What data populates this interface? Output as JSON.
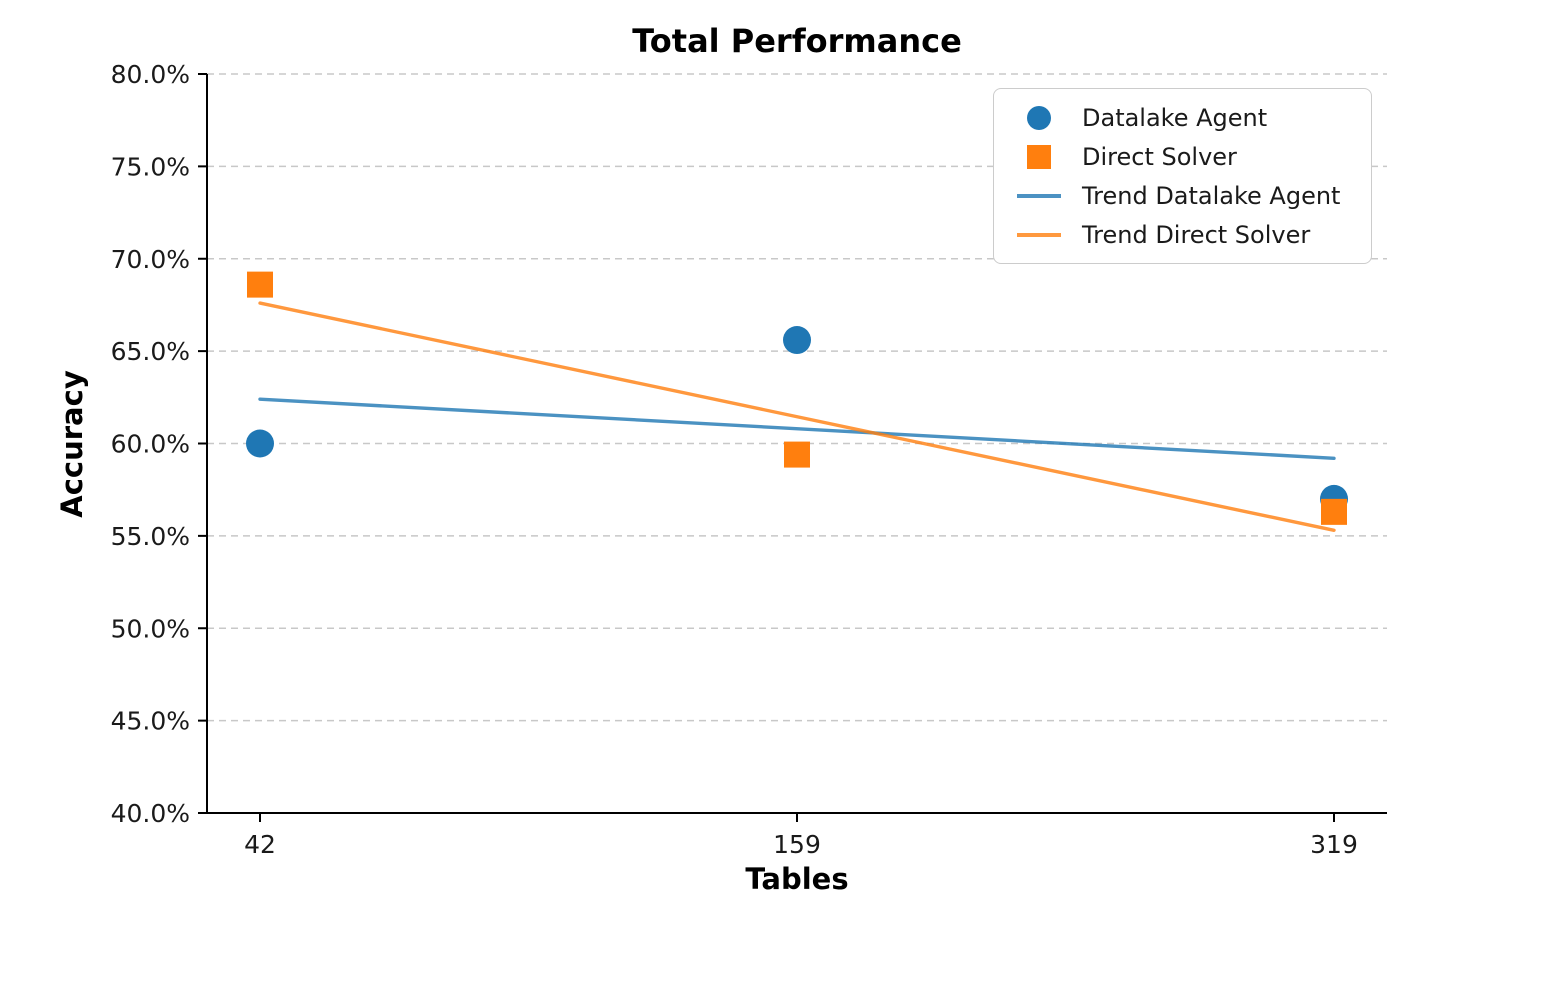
{
  "chart_data": {
    "type": "scatter",
    "title": "Total Performance",
    "xlabel": "Tables",
    "ylabel": "Accuracy",
    "x_tick_labels": [
      "42",
      "159",
      "319"
    ],
    "x_values": [
      42,
      159,
      319
    ],
    "x_spacing": "even",
    "y_ticks": [
      {
        "value": 40,
        "label": "40.0%"
      },
      {
        "value": 45,
        "label": "45.0%"
      },
      {
        "value": 50,
        "label": "50.0%"
      },
      {
        "value": 55,
        "label": "55.0%"
      },
      {
        "value": 60,
        "label": "60.0%"
      },
      {
        "value": 65,
        "label": "65.0%"
      },
      {
        "value": 70,
        "label": "70.0%"
      },
      {
        "value": 75,
        "label": "75.0%"
      },
      {
        "value": 80,
        "label": "80.0%"
      }
    ],
    "ylim": [
      40,
      80
    ],
    "y_unit": "%",
    "grid": "horizontal-dashed",
    "series": [
      {
        "name": "Datalake Agent",
        "marker": "circle",
        "color": "#1f77b4",
        "values": [
          60.0,
          65.6,
          57.0
        ]
      },
      {
        "name": "Direct Solver",
        "marker": "square",
        "color": "#ff7f0e",
        "values": [
          68.6,
          59.4,
          56.3
        ]
      }
    ],
    "trends": [
      {
        "name": "Trend Datalake Agent",
        "color": "#1f77b4",
        "start": 62.4,
        "end": 59.2
      },
      {
        "name": "Trend Direct Solver",
        "color": "#ff7f0e",
        "start": 67.6,
        "end": 55.3
      }
    ],
    "legend": {
      "position": "upper-right",
      "entries": [
        {
          "label": "Datalake Agent",
          "glyph": "circle",
          "color": "#1f77b4"
        },
        {
          "label": "Direct Solver",
          "glyph": "square",
          "color": "#ff7f0e"
        },
        {
          "label": "Trend Datalake Agent",
          "glyph": "line",
          "color": "#1f77b4"
        },
        {
          "label": "Trend Direct Solver",
          "glyph": "line",
          "color": "#ff7f0e"
        }
      ]
    },
    "colors": {
      "blue": "#1f77b4",
      "orange": "#ff7f0e",
      "grid": "#c8c8c8",
      "axis": "#000000",
      "tick_text": "#1a1a1a",
      "legend_border": "#cccccc",
      "background": "#ffffff"
    }
  }
}
